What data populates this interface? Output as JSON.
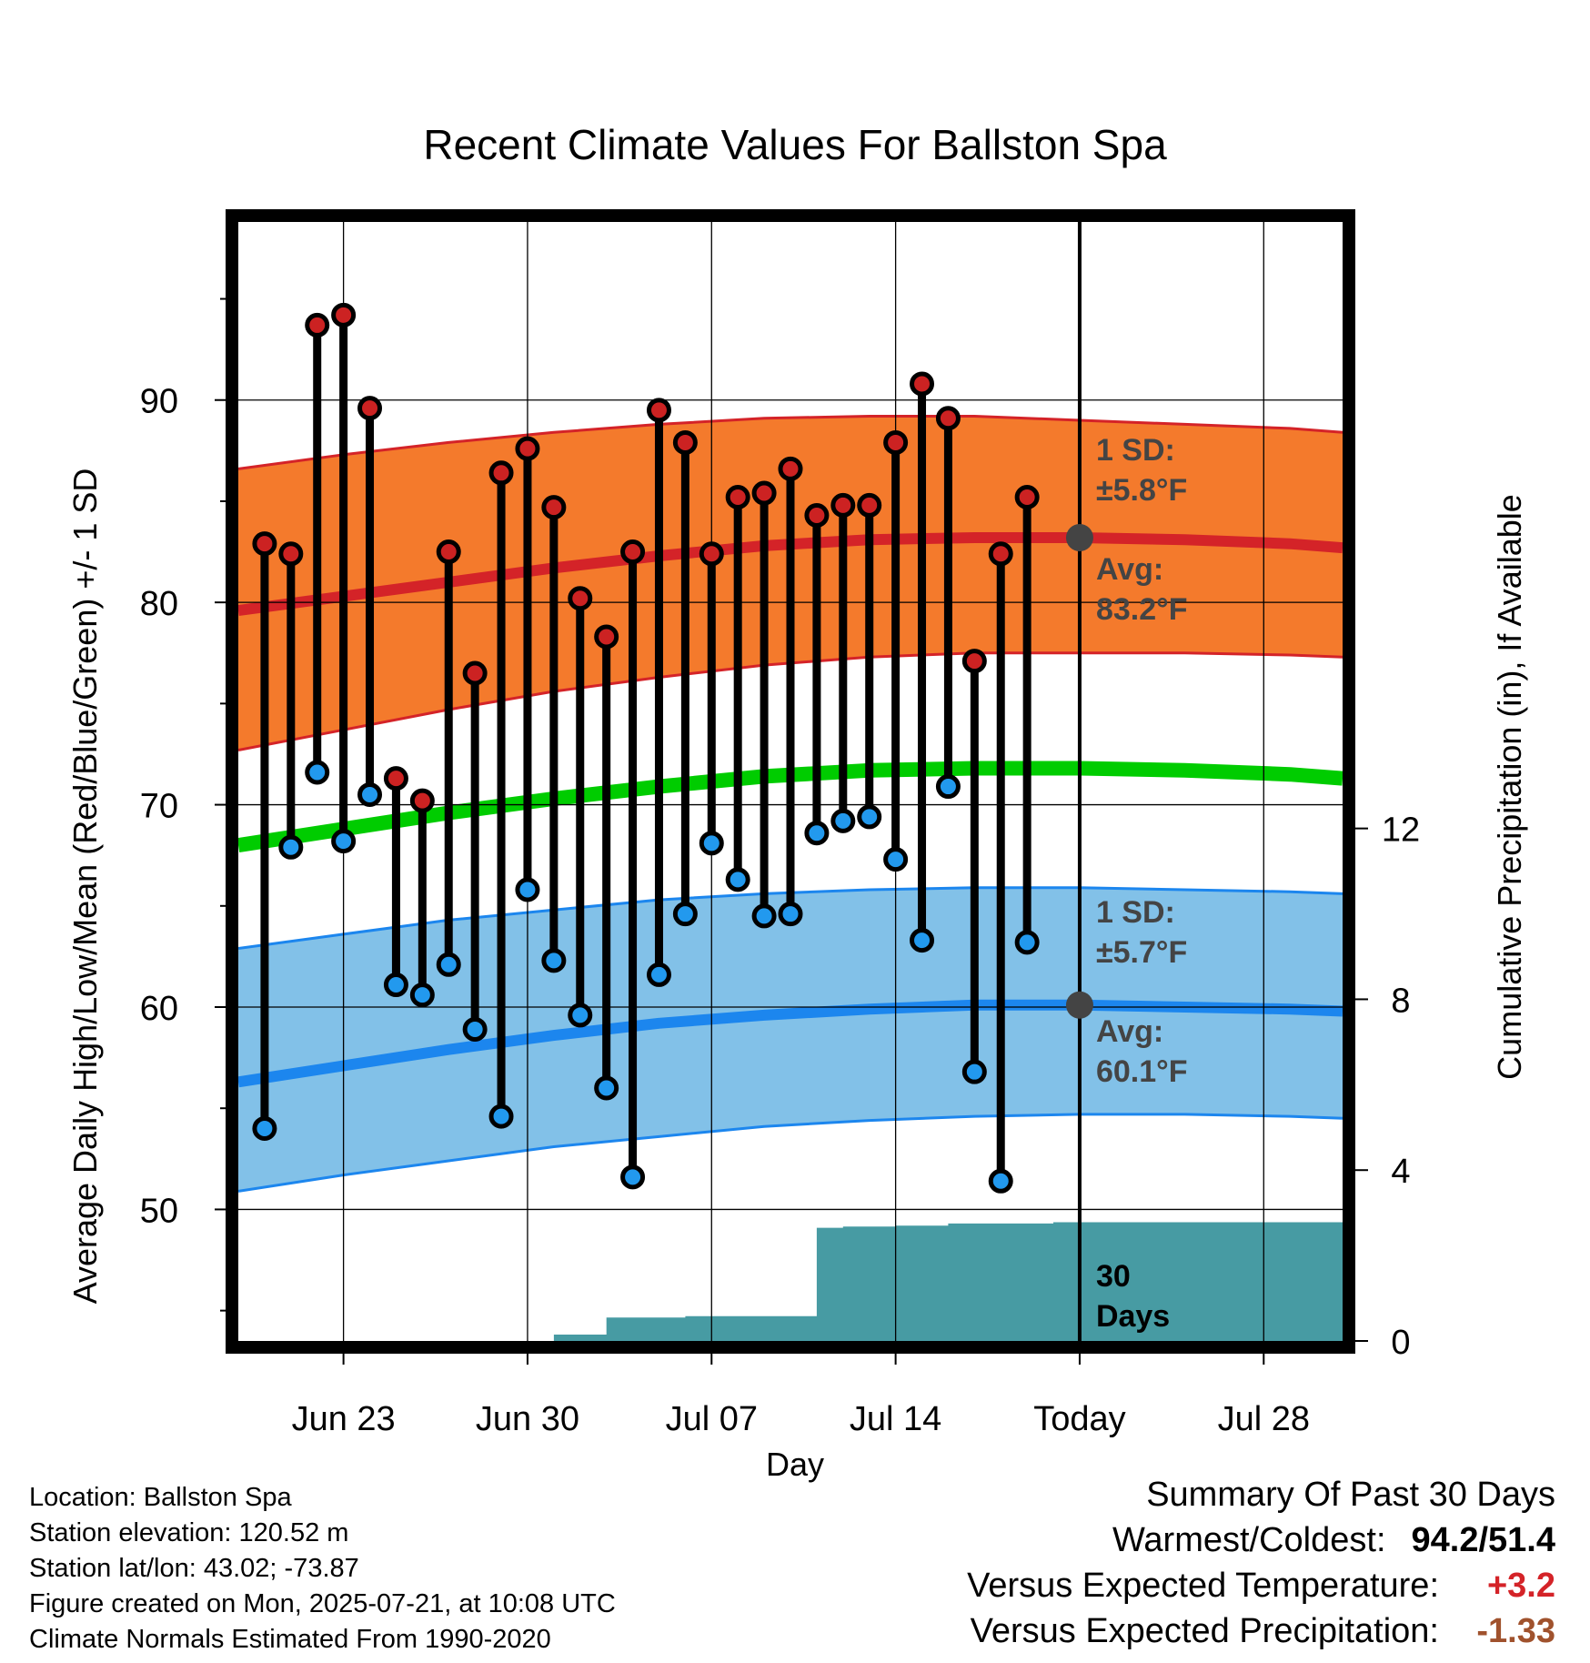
{
  "chart_data": {
    "type": "line",
    "title": "Recent Climate Values For Ballston Spa",
    "xlabel": "Day",
    "ylabel_left": "Average Daily High/Low/Mean (Red/Blue/Green) +/- 1 SD",
    "ylabel_right": "Cumulative Precipitation (in), If Available",
    "y_left_ticks": [
      50,
      60,
      70,
      80,
      90
    ],
    "y_left_range": [
      43.5,
      98.8
    ],
    "y_right_ticks": [
      0,
      4,
      8,
      12
    ],
    "y_right_range": [
      0,
      26.2
    ],
    "x_range": [
      "2025-06-19",
      "2025-07-31"
    ],
    "x_ticks": [
      {
        "date": "2025-06-23",
        "label": "Jun 23"
      },
      {
        "date": "2025-06-30",
        "label": "Jun 30"
      },
      {
        "date": "2025-07-07",
        "label": "Jul 07"
      },
      {
        "date": "2025-07-14",
        "label": "Jul 14"
      },
      {
        "date": "2025-07-21",
        "label": "Today"
      },
      {
        "date": "2025-07-28",
        "label": "Jul 28"
      }
    ],
    "grid": true,
    "today": "2025-07-21",
    "normals": {
      "dates": [
        "2025-06-19",
        "2025-06-23",
        "2025-06-27",
        "2025-07-01",
        "2025-07-05",
        "2025-07-09",
        "2025-07-13",
        "2025-07-17",
        "2025-07-21",
        "2025-07-25",
        "2025-07-29",
        "2025-07-31"
      ],
      "high_avg": [
        79.6,
        80.3,
        81.0,
        81.7,
        82.3,
        82.8,
        83.1,
        83.2,
        83.2,
        83.1,
        82.9,
        82.7
      ],
      "high_upper": [
        86.6,
        87.3,
        87.9,
        88.4,
        88.8,
        89.1,
        89.2,
        89.2,
        89.0,
        88.8,
        88.6,
        88.4
      ],
      "high_lower": [
        72.7,
        73.7,
        74.7,
        75.6,
        76.3,
        76.9,
        77.3,
        77.5,
        77.5,
        77.5,
        77.4,
        77.3
      ],
      "low_avg": [
        56.3,
        57.1,
        57.9,
        58.6,
        59.2,
        59.6,
        59.9,
        60.1,
        60.1,
        60.0,
        59.9,
        59.8
      ],
      "low_upper": [
        62.9,
        63.6,
        64.3,
        64.8,
        65.3,
        65.6,
        65.8,
        65.9,
        65.9,
        65.8,
        65.7,
        65.6
      ],
      "low_lower": [
        50.9,
        51.7,
        52.4,
        53.1,
        53.6,
        54.1,
        54.4,
        54.6,
        54.7,
        54.7,
        54.6,
        54.5
      ],
      "mean": [
        68.0,
        68.8,
        69.6,
        70.3,
        70.9,
        71.4,
        71.7,
        71.8,
        71.8,
        71.7,
        71.5,
        71.3
      ]
    },
    "daily": {
      "dates": [
        "2025-06-20",
        "2025-06-21",
        "2025-06-22",
        "2025-06-23",
        "2025-06-24",
        "2025-06-25",
        "2025-06-26",
        "2025-06-27",
        "2025-06-28",
        "2025-06-29",
        "2025-06-30",
        "2025-07-01",
        "2025-07-02",
        "2025-07-03",
        "2025-07-04",
        "2025-07-05",
        "2025-07-06",
        "2025-07-07",
        "2025-07-08",
        "2025-07-09",
        "2025-07-10",
        "2025-07-11",
        "2025-07-12",
        "2025-07-13",
        "2025-07-14",
        "2025-07-15",
        "2025-07-16",
        "2025-07-17",
        "2025-07-18",
        "2025-07-19",
        "2025-07-20"
      ],
      "high": [
        82.9,
        82.4,
        93.7,
        94.2,
        89.6,
        71.3,
        70.2,
        82.5,
        76.5,
        86.4,
        87.6,
        84.7,
        80.2,
        78.3,
        82.5,
        89.5,
        87.9,
        82.4,
        85.2,
        85.4,
        86.6,
        84.3,
        84.8,
        84.8,
        87.9,
        90.8,
        89.1,
        77.1,
        82.4,
        85.2,
        null
      ],
      "low": [
        54.0,
        67.9,
        71.6,
        68.2,
        70.5,
        61.1,
        60.6,
        62.1,
        58.9,
        54.6,
        65.8,
        62.3,
        59.6,
        56.0,
        51.6,
        61.6,
        64.6,
        68.1,
        66.3,
        64.5,
        64.6,
        68.6,
        69.2,
        69.4,
        67.3,
        63.3,
        70.9,
        56.8,
        51.4,
        63.2,
        null
      ]
    },
    "precip": {
      "dates": [
        "2025-06-19",
        "2025-06-30",
        "2025-07-01",
        "2025-07-02",
        "2025-07-03",
        "2025-07-04",
        "2025-07-05",
        "2025-07-06",
        "2025-07-07",
        "2025-07-08",
        "2025-07-09",
        "2025-07-10",
        "2025-07-11",
        "2025-07-12",
        "2025-07-13",
        "2025-07-14",
        "2025-07-15",
        "2025-07-16",
        "2025-07-17",
        "2025-07-18",
        "2025-07-19",
        "2025-07-20",
        "2025-07-21",
        "2025-07-31"
      ],
      "cumulative": [
        0.0,
        0.0,
        0.15,
        0.15,
        0.55,
        0.55,
        0.55,
        0.58,
        0.58,
        0.58,
        0.58,
        0.58,
        2.65,
        2.68,
        2.68,
        2.7,
        2.7,
        2.75,
        2.75,
        2.75,
        2.75,
        2.78,
        2.78,
        2.78
      ]
    },
    "annotations": {
      "high_sd_1": "1 SD:",
      "high_sd_2": "±5.8°F",
      "high_avg_1": "Avg:",
      "high_avg_2": "83.2°F",
      "low_sd_1": "1 SD:",
      "low_sd_2": "±5.7°F",
      "low_avg_1": "Avg:",
      "low_avg_2": "60.1°F",
      "days_1": "30",
      "days_2": "Days"
    }
  },
  "colors": {
    "high_band": "#f47a2c",
    "high_line": "#d42328",
    "low_band": "#82c1e8",
    "low_line": "#1c86ee",
    "mean_line": "#00cc00",
    "precip_fill": "#479ba3",
    "high_dot": "#cc2222",
    "low_dot": "#2299ee",
    "today_marker": "#444444",
    "anomaly_temp": "#d42328",
    "anomaly_precip": "#a0522d"
  },
  "info": {
    "location": "Location: Ballston Spa",
    "elevation": "Station elevation: 120.52 m",
    "latlon": "Station lat/lon: 43.02; -73.87",
    "created": "Figure created on Mon, 2025-07-21, at 10:08 UTC",
    "normals": "Climate Normals Estimated From 1990-2020"
  },
  "summary": {
    "heading": "Summary Of Past 30 Days",
    "warm_cold_label": "Warmest/Coldest:",
    "warm_cold_value": "94.2/51.4",
    "temp_label": "Versus Expected Temperature:",
    "temp_value": "+3.2",
    "precip_label": "Versus Expected Precipitation:",
    "precip_value": "-1.33"
  }
}
